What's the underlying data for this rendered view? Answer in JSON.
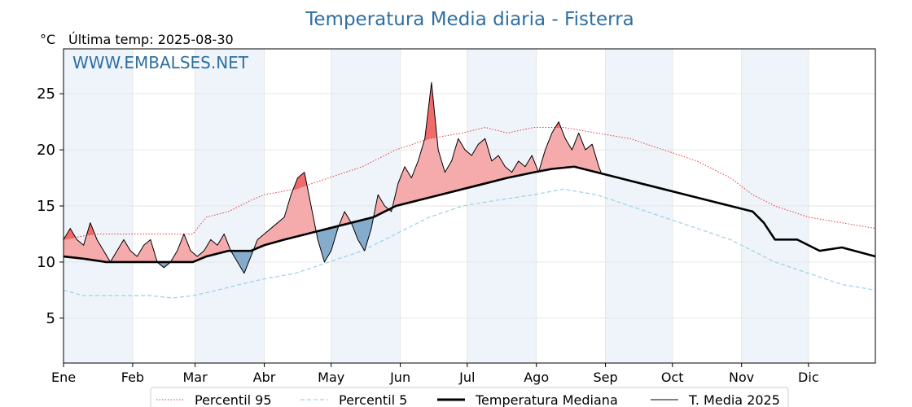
{
  "chart_data": {
    "type": "line",
    "title": "Temperatura Media diaria - Fisterra",
    "subtitle": "Última temp: 2025-08-30",
    "ylabel": "°C",
    "watermark": "WWW.EMBALSES.NET",
    "ylim": [
      1,
      29
    ],
    "yticks": [
      5,
      10,
      15,
      20,
      25
    ],
    "months": [
      "Ene",
      "Feb",
      "Mar",
      "Abr",
      "May",
      "Jun",
      "Jul",
      "Ago",
      "Sep",
      "Oct",
      "Nov",
      "Dic"
    ],
    "x_unit": "day of year (1-365)",
    "legend_position": "bottom",
    "grid": true,
    "colors": {
      "title": "#2e6fa3",
      "p95": "#e8383d",
      "p5": "#9fd4e6",
      "median": "#000000",
      "t2025": "#000000",
      "above_fill": "#f4a7a8",
      "above_fill_strong": "#f26b6b",
      "below_fill": "#7fa8c9",
      "month_shade": "#eef4fa"
    },
    "series": [
      {
        "name": "Percentil 95",
        "style": "dotted-red",
        "points": [
          [
            1,
            12
          ],
          [
            15,
            12.5
          ],
          [
            30,
            12.5
          ],
          [
            45,
            12.5
          ],
          [
            59,
            12.5
          ],
          [
            65,
            14
          ],
          [
            75,
            14.5
          ],
          [
            85,
            15.5
          ],
          [
            91,
            16
          ],
          [
            105,
            16.5
          ],
          [
            120,
            17.5
          ],
          [
            135,
            18.5
          ],
          [
            150,
            20
          ],
          [
            165,
            21
          ],
          [
            180,
            21.5
          ],
          [
            190,
            22
          ],
          [
            200,
            21.5
          ],
          [
            212,
            22
          ],
          [
            225,
            22
          ],
          [
            240,
            21.5
          ],
          [
            255,
            21
          ],
          [
            270,
            20
          ],
          [
            285,
            19
          ],
          [
            300,
            17.5
          ],
          [
            310,
            16
          ],
          [
            320,
            15
          ],
          [
            335,
            14
          ],
          [
            350,
            13.5
          ],
          [
            365,
            13
          ]
        ]
      },
      {
        "name": "Percentil 5",
        "style": "dashed-lightblue",
        "points": [
          [
            1,
            7.5
          ],
          [
            10,
            7
          ],
          [
            20,
            7
          ],
          [
            30,
            7
          ],
          [
            40,
            7
          ],
          [
            50,
            6.8
          ],
          [
            59,
            7
          ],
          [
            70,
            7.5
          ],
          [
            80,
            8
          ],
          [
            91,
            8.5
          ],
          [
            105,
            9
          ],
          [
            120,
            10
          ],
          [
            135,
            11
          ],
          [
            150,
            12.5
          ],
          [
            165,
            14
          ],
          [
            180,
            15
          ],
          [
            195,
            15.5
          ],
          [
            212,
            16
          ],
          [
            225,
            16.5
          ],
          [
            240,
            16
          ],
          [
            255,
            15
          ],
          [
            270,
            14
          ],
          [
            285,
            13
          ],
          [
            300,
            12
          ],
          [
            310,
            11
          ],
          [
            320,
            10
          ],
          [
            335,
            9
          ],
          [
            350,
            8
          ],
          [
            365,
            7.5
          ]
        ]
      },
      {
        "name": "Temperatura Mediana",
        "style": "thick-black",
        "points": [
          [
            1,
            10.5
          ],
          [
            10,
            10.3
          ],
          [
            20,
            10
          ],
          [
            30,
            10
          ],
          [
            40,
            10
          ],
          [
            50,
            10
          ],
          [
            59,
            10
          ],
          [
            65,
            10.5
          ],
          [
            75,
            11
          ],
          [
            85,
            11
          ],
          [
            91,
            11.5
          ],
          [
            100,
            12
          ],
          [
            110,
            12.5
          ],
          [
            120,
            13
          ],
          [
            130,
            13.5
          ],
          [
            140,
            14
          ],
          [
            150,
            15
          ],
          [
            160,
            15.5
          ],
          [
            170,
            16
          ],
          [
            180,
            16.5
          ],
          [
            190,
            17
          ],
          [
            200,
            17.5
          ],
          [
            212,
            18
          ],
          [
            220,
            18.3
          ],
          [
            230,
            18.5
          ],
          [
            240,
            18
          ],
          [
            250,
            17.5
          ],
          [
            260,
            17
          ],
          [
            270,
            16.5
          ],
          [
            280,
            16
          ],
          [
            290,
            15.5
          ],
          [
            300,
            15
          ],
          [
            310,
            14.5
          ],
          [
            315,
            13.5
          ],
          [
            320,
            12
          ],
          [
            330,
            12
          ],
          [
            340,
            11
          ],
          [
            350,
            11.3
          ],
          [
            365,
            10.5
          ]
        ]
      },
      {
        "name": "T. Media 2025",
        "style": "thin-black",
        "points": [
          [
            1,
            12
          ],
          [
            4,
            13
          ],
          [
            7,
            12
          ],
          [
            10,
            11.5
          ],
          [
            13,
            13.5
          ],
          [
            16,
            12
          ],
          [
            19,
            11
          ],
          [
            22,
            10
          ],
          [
            25,
            11
          ],
          [
            28,
            12
          ],
          [
            31,
            11
          ],
          [
            34,
            10.5
          ],
          [
            37,
            11.5
          ],
          [
            40,
            12
          ],
          [
            43,
            10
          ],
          [
            46,
            9.5
          ],
          [
            49,
            10
          ],
          [
            52,
            11
          ],
          [
            55,
            12.5
          ],
          [
            58,
            11
          ],
          [
            61,
            10.5
          ],
          [
            64,
            11
          ],
          [
            67,
            12
          ],
          [
            70,
            11.5
          ],
          [
            73,
            12.5
          ],
          [
            76,
            11
          ],
          [
            79,
            10
          ],
          [
            82,
            9
          ],
          [
            85,
            10.5
          ],
          [
            88,
            12
          ],
          [
            91,
            12.5
          ],
          [
            94,
            13
          ],
          [
            97,
            13.5
          ],
          [
            100,
            14
          ],
          [
            103,
            16
          ],
          [
            106,
            17.5
          ],
          [
            109,
            18
          ],
          [
            112,
            15
          ],
          [
            115,
            12
          ],
          [
            118,
            10
          ],
          [
            121,
            11
          ],
          [
            124,
            13
          ],
          [
            127,
            14.5
          ],
          [
            130,
            13.5
          ],
          [
            133,
            12
          ],
          [
            136,
            11
          ],
          [
            139,
            13
          ],
          [
            142,
            16
          ],
          [
            145,
            15
          ],
          [
            148,
            14.5
          ],
          [
            151,
            17
          ],
          [
            154,
            18.5
          ],
          [
            157,
            17.5
          ],
          [
            160,
            19
          ],
          [
            163,
            21
          ],
          [
            166,
            26
          ],
          [
            169,
            20
          ],
          [
            172,
            18
          ],
          [
            175,
            19
          ],
          [
            178,
            21
          ],
          [
            181,
            20
          ],
          [
            184,
            19.5
          ],
          [
            187,
            20.5
          ],
          [
            190,
            21
          ],
          [
            193,
            19
          ],
          [
            196,
            19.5
          ],
          [
            199,
            18.5
          ],
          [
            202,
            18
          ],
          [
            205,
            19
          ],
          [
            208,
            18.5
          ],
          [
            211,
            19.5
          ],
          [
            214,
            18
          ],
          [
            217,
            20
          ],
          [
            220,
            21.5
          ],
          [
            223,
            22.5
          ],
          [
            226,
            21
          ],
          [
            229,
            20
          ],
          [
            232,
            21.5
          ],
          [
            235,
            20
          ],
          [
            238,
            20.5
          ],
          [
            241,
            18.5
          ],
          [
            242,
            18
          ]
        ]
      }
    ]
  },
  "legend": {
    "items": [
      {
        "label": "Percentil 95"
      },
      {
        "label": "Percentil 5"
      },
      {
        "label": "Temperatura Mediana"
      },
      {
        "label": "T. Media 2025"
      }
    ]
  }
}
